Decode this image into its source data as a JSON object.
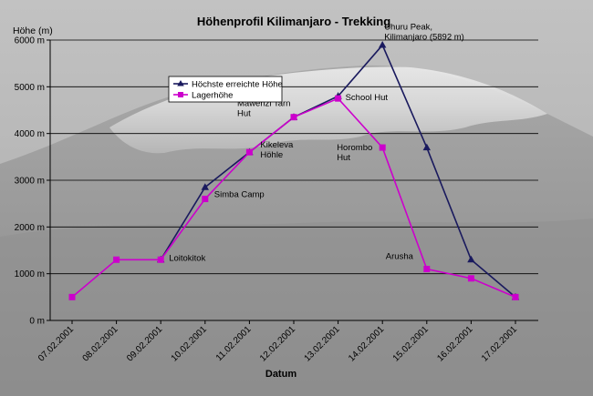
{
  "chart_data": {
    "type": "line",
    "title": "Höhenprofil Kilimanjaro - Trekking",
    "xlabel": "Datum",
    "ylabel": "Höhe (m)",
    "ylim": [
      0,
      6000
    ],
    "ytick_step": 1000,
    "ytick_labels": [
      "0 m",
      "1000 m",
      "2000 m",
      "3000 m",
      "4000 m",
      "5000 m",
      "6000 m"
    ],
    "grid": true,
    "legend_position": "top-left",
    "categories": [
      "07.02.2001",
      "08.02.2001",
      "09.02.2001",
      "10.02.2001",
      "11.02.2001",
      "12.02.2001",
      "13.02.2001",
      "14.02.2001",
      "15.02.2001",
      "16.02.2001",
      "17.02.2001"
    ],
    "series": [
      {
        "name": "Höchste erreichte Höhe",
        "color": "#1a1a5e",
        "marker": "triangle",
        "values": [
          null,
          null,
          1300,
          2850,
          3600,
          4350,
          4800,
          5892,
          3700,
          1300,
          500
        ]
      },
      {
        "name": "Lagerhöhe",
        "color": "#cc00cc",
        "marker": "square",
        "values": [
          500,
          1300,
          1300,
          2600,
          3600,
          4350,
          4750,
          3700,
          1100,
          900,
          500
        ]
      }
    ],
    "annotations": [
      {
        "lines": [
          "Uhuru Peak,",
          "Kilimanjaro (5892 m)"
        ],
        "x": "14.02.2001",
        "y": 5892
      },
      {
        "lines": [
          "School Hut"
        ],
        "x": "13.02.2001",
        "y": 4750
      },
      {
        "lines": [
          "Mawenzi Tarn",
          "Hut"
        ],
        "x": "12.02.2001",
        "y": 4350
      },
      {
        "lines": [
          "Horombo",
          "Hut"
        ],
        "x": "14.02.2001",
        "y": 3700
      },
      {
        "lines": [
          "Kikeleva",
          "Höhle"
        ],
        "x": "11.02.2001",
        "y": 3600
      },
      {
        "lines": [
          "Simba Camp"
        ],
        "x": "10.02.2001",
        "y": 2600
      },
      {
        "lines": [
          "Loitokitok"
        ],
        "x": "09.02.2001",
        "y": 1300
      },
      {
        "lines": [
          "Arusha"
        ],
        "x": "15.02.2001",
        "y": 1100
      }
    ]
  }
}
